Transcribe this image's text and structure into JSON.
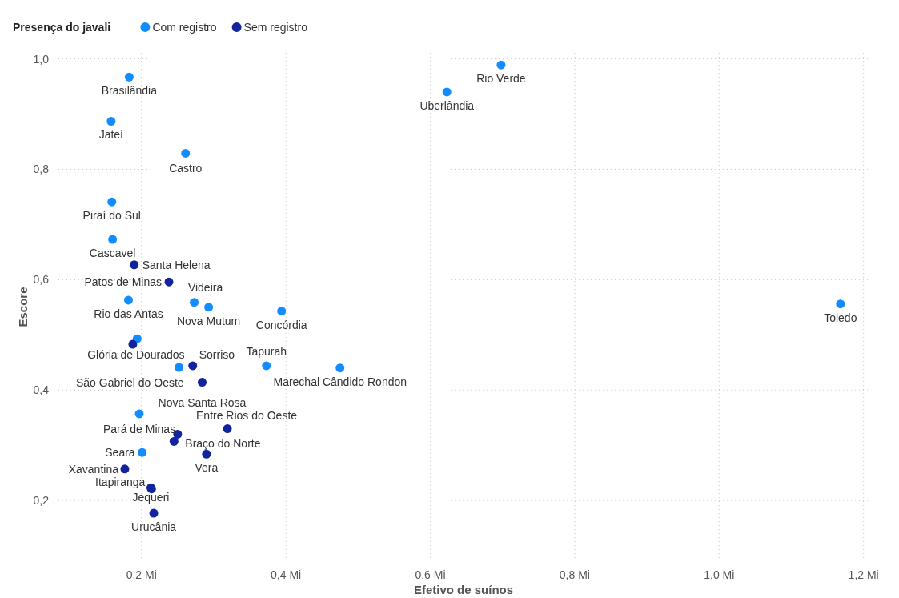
{
  "chart_data": {
    "type": "scatter",
    "xlabel": "Efetivo de suínos",
    "ylabel": "Escore",
    "legend_title": "Presença do javali",
    "legend": "top left",
    "grid": true,
    "marker": "circle",
    "xlim": [
      0.085,
      1.207
    ],
    "xticks": [
      {
        "value": 0.2,
        "label": "0,2 Mi"
      },
      {
        "value": 0.4,
        "label": "0,4 Mi"
      },
      {
        "value": 0.6,
        "label": "0,6 Mi"
      },
      {
        "value": 0.8,
        "label": "0,8 Mi"
      },
      {
        "value": 1.0,
        "label": "1,0 Mi"
      },
      {
        "value": 1.2,
        "label": "1,2 Mi"
      }
    ],
    "ylim": [
      0.09,
      1.011
    ],
    "yticks": [
      {
        "value": 0.2,
        "label": "0,2"
      },
      {
        "value": 0.4,
        "label": "0,4"
      },
      {
        "value": 0.6,
        "label": "0,6"
      },
      {
        "value": 0.8,
        "label": "0,8"
      },
      {
        "value": 1.0,
        "label": "1,0"
      }
    ],
    "series": [
      {
        "name": "Com registro",
        "color": "#118dff",
        "x": [
          0.183,
          0.158,
          0.261,
          0.159,
          0.16,
          0.182,
          0.273,
          0.293,
          0.394,
          0.194,
          0.252,
          0.373,
          0.475,
          0.197,
          0.201,
          0.698,
          0.623,
          1.168
        ],
        "values": [
          0.967,
          0.887,
          0.829,
          0.741,
          0.673,
          0.563,
          0.559,
          0.55,
          0.543,
          0.493,
          0.441,
          0.444,
          0.44,
          0.357,
          0.287,
          0.989,
          0.94,
          0.556
        ],
        "value_labels": [
          "Brasilândia",
          "Jateí",
          "Castro",
          "Piraí do Sul",
          "Cascavel",
          "Rio das Antas",
          "Videira",
          "Nova Mutum",
          "Concórdia",
          null,
          "São Gabriel do Oeste",
          "Tapurah",
          "Marechal Cândido Rondon",
          "Pará de Minas",
          "Seara",
          "Rio Verde",
          "Uberlândia",
          "Toledo"
        ]
      },
      {
        "name": "Sem registro",
        "color": "#12239e",
        "x": [
          0.19,
          0.238,
          0.188,
          0.271,
          0.284,
          0.319,
          0.25,
          0.245,
          0.29,
          0.177,
          0.214,
          0.213,
          0.217
        ],
        "values": [
          0.627,
          0.596,
          0.483,
          0.444,
          0.414,
          0.33,
          0.32,
          0.307,
          0.284,
          0.257,
          0.221,
          0.223,
          0.177
        ],
        "value_labels": [
          "Santa Helena",
          "Patos de Minas",
          "Glória de Dourados",
          "Sorriso",
          "Nova Santa Rosa",
          "Entre Rios do Oeste",
          null,
          "Braço do Norte",
          "Vera",
          "Xavantina",
          "Itapiranga",
          "Jequeri",
          "Urucânia"
        ]
      }
    ]
  }
}
